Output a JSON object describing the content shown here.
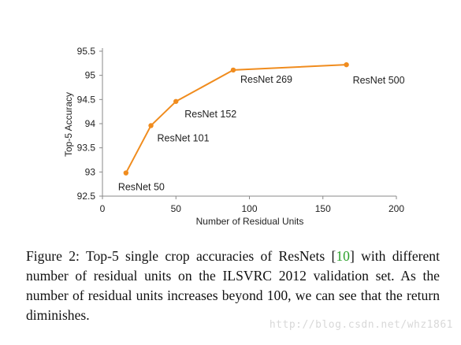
{
  "chart_data": {
    "type": "line",
    "xlabel": "Number of Residual Units",
    "ylabel": "Top-5 Accuracy",
    "xlim": [
      0,
      200
    ],
    "ylim": [
      92.5,
      95.5
    ],
    "x_ticks": [
      "0",
      "50",
      "100",
      "150",
      "200"
    ],
    "y_ticks": [
      "92.5",
      "93",
      "93.5",
      "94",
      "94.5",
      "95",
      "95.5"
    ],
    "grid": false,
    "color": "#F08C1E",
    "points": [
      {
        "x": 16,
        "y": 92.98,
        "label": "ResNet 50"
      },
      {
        "x": 33,
        "y": 93.96,
        "label": "ResNet 101"
      },
      {
        "x": 50,
        "y": 94.46,
        "label": "ResNet 152"
      },
      {
        "x": 89,
        "y": 95.11,
        "label": "ResNet 269"
      },
      {
        "x": 166,
        "y": 95.22,
        "label": "ResNet 500"
      }
    ]
  },
  "caption": {
    "prefix": "Figure 2:",
    "text_before_ref": "Top-5 single crop accuracies of ResNets [",
    "ref": "10",
    "text_after_ref": "] with different number of residual units on the ILSVRC 2012 validation set. As the number of residual units increases beyond 100, we can see that the return diminishes."
  },
  "watermark": "http://blog.csdn.net/whz1861"
}
